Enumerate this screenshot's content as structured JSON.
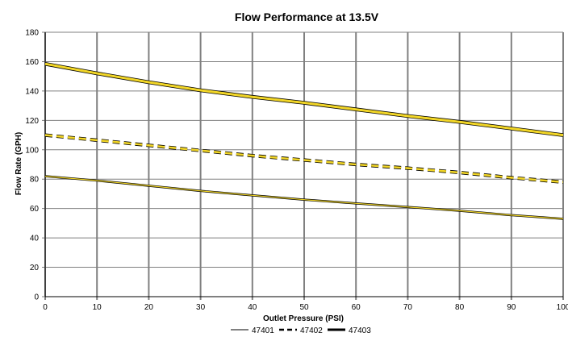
{
  "chart_data": {
    "type": "line",
    "title": "Flow Performance at 13.5V",
    "xlabel": "Outlet Pressure (PSI)",
    "ylabel": "Flow Rate (GPH)",
    "xlim": [
      0,
      100
    ],
    "ylim": [
      0,
      180
    ],
    "x_ticks": [
      "0",
      "10",
      "20",
      "30",
      "40",
      "50",
      "60",
      "70",
      "80",
      "90",
      "100"
    ],
    "y_ticks": [
      "0",
      "20",
      "40",
      "60",
      "80",
      "100",
      "120",
      "140",
      "160",
      "180"
    ],
    "grid": true,
    "legend_position": "bottom",
    "colors": {
      "line": "#f2d627",
      "outline": "#000000",
      "grid": "#808080"
    },
    "series": [
      {
        "name": "47401",
        "style": "thin-solid",
        "x": [
          0,
          10,
          20,
          30,
          40,
          50,
          60,
          70,
          80,
          90,
          100
        ],
        "y": [
          82,
          79,
          75.5,
          72,
          69,
          66,
          63.5,
          61,
          58.5,
          55.5,
          53
        ]
      },
      {
        "name": "47402",
        "style": "dashed",
        "x": [
          0,
          10,
          20,
          30,
          40,
          50,
          60,
          70,
          80,
          90,
          100
        ],
        "y": [
          110,
          106.5,
          103,
          99.5,
          96,
          93,
          90,
          87.5,
          84.5,
          81,
          78
        ]
      },
      {
        "name": "47403",
        "style": "thick-solid",
        "x": [
          0,
          10,
          20,
          30,
          40,
          50,
          60,
          70,
          80,
          90,
          100
        ],
        "y": [
          158.5,
          152,
          146,
          140.5,
          136,
          132,
          127.5,
          123,
          119,
          114.5,
          110
        ]
      }
    ]
  }
}
